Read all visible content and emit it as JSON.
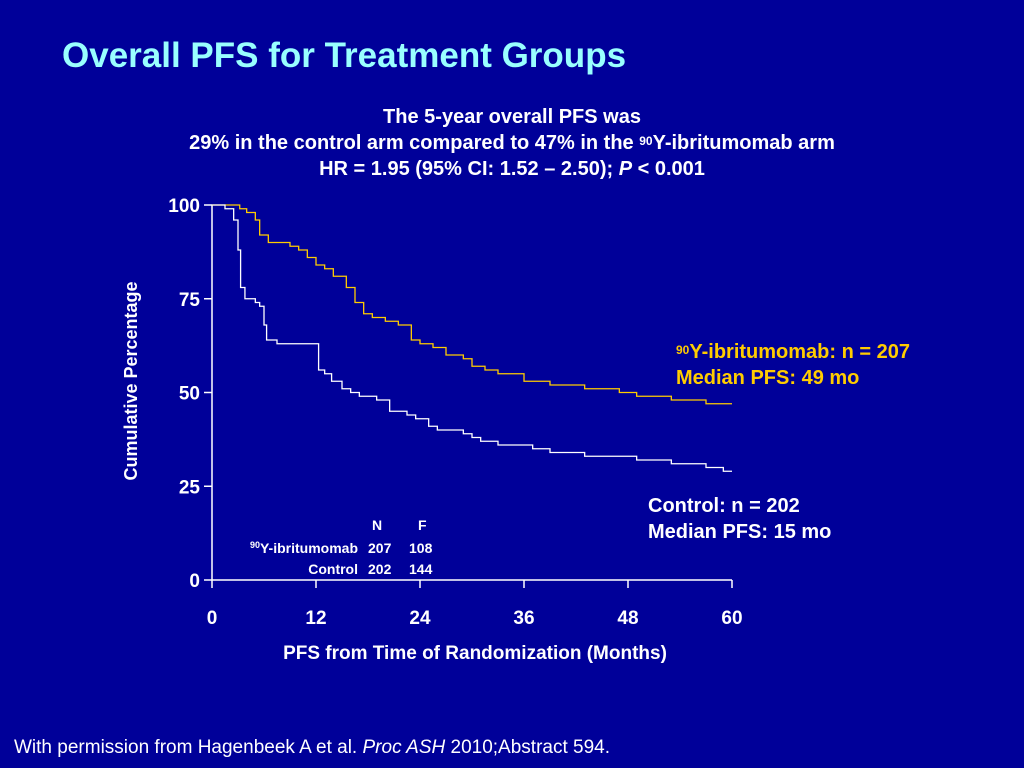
{
  "slide": {
    "title": "Overall PFS for Treatment Groups",
    "subtitle_line1": "The 5-year overall PFS was",
    "subtitle_line2_a": "29% in the control arm compared to 47% in the ",
    "subtitle_line2_sup": "90",
    "subtitle_line2_b": "Y-ibritumomab arm",
    "subtitle_line3_a": "HR = 1.95 (95% CI: 1.52 – 2.50); ",
    "subtitle_line3_p": "P",
    "subtitle_line3_b": " < 0.001",
    "footer_a": "With permission from Hagenbeek A et al. ",
    "footer_journal": "Proc ASH",
    "footer_b": " 2010;Abstract 594."
  },
  "annotations": {
    "ibrit_sup": "90",
    "ibrit_line1": "Y-ibritumomab: n = 207",
    "ibrit_line2": "Median PFS: 49 mo",
    "control_line1": "Control: n = 202",
    "control_line2": "Median PFS: 15 mo"
  },
  "table": {
    "header_n": "N",
    "header_f": "F",
    "row1_sup": "90",
    "row1_label": "Y-ibritumomab",
    "row1_n": "207",
    "row1_f": "108",
    "row2_label": "Control",
    "row2_n": "202",
    "row2_f": "144"
  },
  "colors": {
    "background": "#000099",
    "title": "#99ffff",
    "ibritumomab_line": "#ffcc00",
    "control_line": "#ffffff",
    "annotation_ibrit": "#ffcc00"
  },
  "chart_data": {
    "type": "line",
    "xlabel": "PFS from Time of Randomization (Months)",
    "ylabel": "Cumulative Percentage",
    "xlim": [
      0,
      60
    ],
    "ylim": [
      0,
      100
    ],
    "xticks": [
      0,
      12,
      24,
      36,
      48,
      60
    ],
    "yticks": [
      0,
      25,
      50,
      75,
      100
    ],
    "series": [
      {
        "name": "90Y-ibritumomab",
        "color": "#ffcc00",
        "points": [
          [
            0,
            100
          ],
          [
            2.5,
            100
          ],
          [
            3.2,
            99
          ],
          [
            4,
            98
          ],
          [
            5,
            96
          ],
          [
            5.5,
            92
          ],
          [
            6.5,
            90
          ],
          [
            7.5,
            90
          ],
          [
            9,
            89
          ],
          [
            10,
            88
          ],
          [
            11,
            86
          ],
          [
            12,
            84
          ],
          [
            13,
            83
          ],
          [
            14,
            81
          ],
          [
            15.5,
            78
          ],
          [
            16.5,
            74
          ],
          [
            17.5,
            71
          ],
          [
            18.5,
            70
          ],
          [
            20,
            69
          ],
          [
            21.5,
            68
          ],
          [
            23,
            64
          ],
          [
            24,
            63
          ],
          [
            25.5,
            62
          ],
          [
            27,
            60
          ],
          [
            29,
            59
          ],
          [
            30,
            57
          ],
          [
            31.5,
            56
          ],
          [
            33,
            55
          ],
          [
            34.5,
            55
          ],
          [
            36,
            53
          ],
          [
            37.5,
            53
          ],
          [
            39,
            52
          ],
          [
            41,
            52
          ],
          [
            43,
            51
          ],
          [
            45,
            51
          ],
          [
            47,
            50
          ],
          [
            49,
            49
          ],
          [
            51,
            49
          ],
          [
            53,
            48
          ],
          [
            55,
            48
          ],
          [
            57,
            47
          ],
          [
            58,
            47
          ],
          [
            60,
            47
          ]
        ]
      },
      {
        "name": "Control",
        "color": "#ffffff",
        "points": [
          [
            0,
            100
          ],
          [
            1.5,
            99
          ],
          [
            2.5,
            96
          ],
          [
            3,
            88
          ],
          [
            3.3,
            78
          ],
          [
            3.8,
            75
          ],
          [
            5,
            74
          ],
          [
            5.5,
            73
          ],
          [
            6,
            68
          ],
          [
            6.3,
            64
          ],
          [
            7.5,
            63
          ],
          [
            10,
            63
          ],
          [
            11,
            63
          ],
          [
            12.3,
            56
          ],
          [
            13,
            55
          ],
          [
            13.8,
            53
          ],
          [
            15,
            51
          ],
          [
            16,
            50
          ],
          [
            17,
            49
          ],
          [
            18,
            49
          ],
          [
            19,
            48
          ],
          [
            20.5,
            45
          ],
          [
            22,
            45
          ],
          [
            22.5,
            44
          ],
          [
            23.5,
            43
          ],
          [
            24,
            43
          ],
          [
            25,
            41
          ],
          [
            26,
            40
          ],
          [
            28,
            40
          ],
          [
            29,
            39
          ],
          [
            29.5,
            39
          ],
          [
            30,
            38
          ],
          [
            31,
            37
          ],
          [
            33,
            36
          ],
          [
            35,
            36
          ],
          [
            37,
            35
          ],
          [
            38,
            35
          ],
          [
            39,
            34
          ],
          [
            41,
            34
          ],
          [
            43,
            33
          ],
          [
            45,
            33
          ],
          [
            47,
            33
          ],
          [
            49,
            32
          ],
          [
            51,
            32
          ],
          [
            53,
            31
          ],
          [
            55,
            31
          ],
          [
            57,
            30
          ],
          [
            59,
            29
          ],
          [
            60,
            29
          ]
        ]
      }
    ]
  }
}
